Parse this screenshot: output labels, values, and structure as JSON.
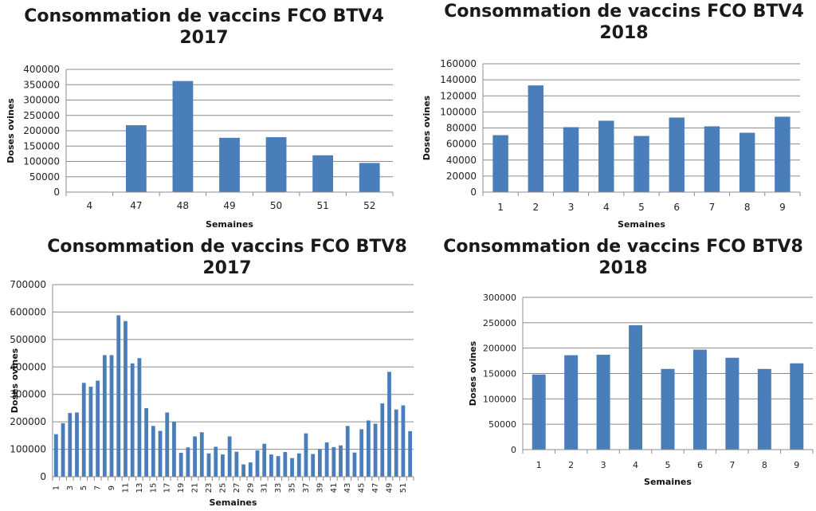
{
  "page": {
    "background": "#ffffff"
  },
  "style": {
    "bar_color": "#4a7ebb",
    "grid_color": "#8c8c8c",
    "axis_color": "#8c8c8c"
  },
  "chart_data": [
    {
      "type": "bar",
      "title": [
        "Consommation de vaccins FCO BTV4",
        "2017"
      ],
      "xlabel": "Semaines",
      "ylabel": "Doses ovines",
      "categories": [
        "4",
        "47",
        "48",
        "49",
        "50",
        "51",
        "52"
      ],
      "values": [
        0,
        218000,
        362000,
        177000,
        179000,
        120000,
        95000
      ],
      "ylim": [
        0,
        400000
      ],
      "yticks": [
        0,
        50000,
        100000,
        150000,
        200000,
        250000,
        300000,
        350000,
        400000
      ],
      "grid": true
    },
    {
      "type": "bar",
      "title": [
        "Consommation de vaccins FCO BTV4",
        "2018"
      ],
      "xlabel": "Semaines",
      "ylabel": "Doses ovines",
      "categories": [
        "1",
        "2",
        "3",
        "4",
        "5",
        "6",
        "7",
        "8",
        "9"
      ],
      "values": [
        71000,
        133000,
        81000,
        89000,
        70000,
        93000,
        82000,
        74000,
        94000
      ],
      "ylim": [
        0,
        160000
      ],
      "yticks": [
        0,
        20000,
        40000,
        60000,
        80000,
        100000,
        120000,
        140000,
        160000
      ],
      "grid": true
    },
    {
      "type": "bar",
      "title": [
        "Consommation de vaccins FCO BTV8",
        "2017"
      ],
      "xlabel": "Semaines",
      "ylabel": "Doses ovines",
      "categories": [
        "1",
        "2",
        "3",
        "4",
        "5",
        "6",
        "7",
        "8",
        "9",
        "10",
        "11",
        "12",
        "13",
        "14",
        "15",
        "16",
        "17",
        "18",
        "19",
        "20",
        "21",
        "22",
        "23",
        "24",
        "25",
        "26",
        "27",
        "28",
        "29",
        "30",
        "31",
        "32",
        "33",
        "34",
        "35",
        "36",
        "37",
        "38",
        "39",
        "40",
        "41",
        "42",
        "43",
        "44",
        "45",
        "46",
        "47",
        "48",
        "49",
        "50",
        "51",
        "52"
      ],
      "tick_labels": [
        "1",
        "",
        "3",
        "",
        "5",
        "",
        "7",
        "",
        "9",
        "",
        "11",
        "",
        "13",
        "",
        "15",
        "",
        "17",
        "",
        "19",
        "",
        "21",
        "",
        "23",
        "",
        "25",
        "",
        "27",
        "",
        "29",
        "",
        "31",
        "",
        "33",
        "",
        "35",
        "",
        "37",
        "",
        "39",
        "",
        "41",
        "",
        "43",
        "",
        "45",
        "",
        "47",
        "",
        "49",
        "",
        "51",
        ""
      ],
      "values": [
        155000,
        195000,
        232000,
        234000,
        342000,
        328000,
        350000,
        443000,
        443000,
        588000,
        567000,
        413000,
        432000,
        250000,
        185000,
        167000,
        234000,
        200000,
        87000,
        107000,
        147000,
        162000,
        85000,
        109000,
        81000,
        147000,
        91000,
        45000,
        52000,
        96000,
        120000,
        81000,
        75000,
        90000,
        68000,
        85000,
        158000,
        83000,
        101000,
        125000,
        108000,
        114000,
        185000,
        88000,
        173000,
        205000,
        193000,
        267000,
        382000,
        245000,
        260000,
        166000
      ],
      "ylim": [
        0,
        700000
      ],
      "yticks": [
        0,
        100000,
        200000,
        300000,
        400000,
        500000,
        600000,
        700000
      ],
      "grid": true
    },
    {
      "type": "bar",
      "title": [
        "Consommation de vaccins FCO BTV8",
        "2018"
      ],
      "xlabel": "Semaines",
      "ylabel": "Doses ovines",
      "categories": [
        "1",
        "2",
        "3",
        "4",
        "5",
        "6",
        "7",
        "8",
        "9"
      ],
      "values": [
        148000,
        186000,
        187000,
        245000,
        159000,
        197000,
        181000,
        159000,
        170000
      ],
      "ylim": [
        0,
        300000
      ],
      "yticks": [
        0,
        50000,
        100000,
        150000,
        200000,
        250000,
        300000
      ],
      "grid": true
    }
  ]
}
